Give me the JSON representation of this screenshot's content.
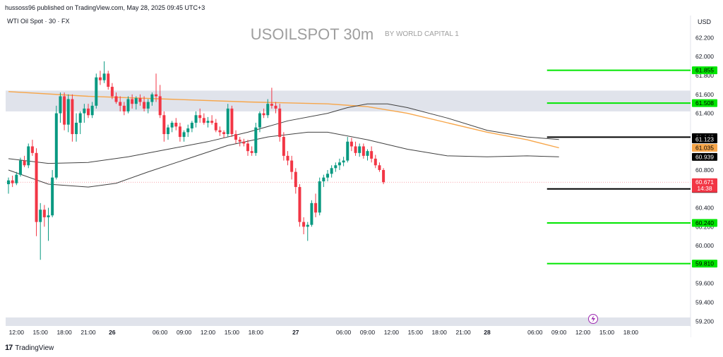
{
  "header": {
    "published_line": "hussoss96 published on TradingView.com, May 28, 2025 09:45 UTC+3"
  },
  "footer": {
    "brand": "TradingView",
    "logo_text": "17"
  },
  "colors": {
    "up": "#089981",
    "down": "#f23645",
    "support_resistance": "#00e600",
    "band_zone": "#e0e3eb",
    "ema": "#f7a64a",
    "envelope": "#404040",
    "axis_text": "#131722",
    "title_gray": "#9e9e9e"
  },
  "chart_data": {
    "type": "candlestick",
    "symbol_line": "WTI Oil Spot · 30 · FX",
    "title": "USOILSPOT 30m",
    "subtitle": "BY WORLD CAPITAL 1",
    "currency": "USD",
    "ylim": [
      59.15,
      62.3
    ],
    "y_ticks": [
      {
        "value": 62.2,
        "label": "62.200"
      },
      {
        "value": 62.0,
        "label": "62.000"
      },
      {
        "value": 61.8,
        "label": "61.800"
      },
      {
        "value": 61.6,
        "label": "61.600"
      },
      {
        "value": 61.4,
        "label": "61.400"
      },
      {
        "value": 60.8,
        "label": "60.800"
      },
      {
        "value": 60.4,
        "label": "60.400"
      },
      {
        "value": 60.2,
        "label": "60.200"
      },
      {
        "value": 60.0,
        "label": "60.000"
      },
      {
        "value": 59.6,
        "label": "59.600"
      },
      {
        "value": 59.4,
        "label": "59.400"
      },
      {
        "value": 59.2,
        "label": "59.200"
      }
    ],
    "x_ticks": [
      {
        "bar": 2,
        "label": "12:00",
        "bold": false
      },
      {
        "bar": 8,
        "label": "15:00",
        "bold": false
      },
      {
        "bar": 14,
        "label": "18:00",
        "bold": false
      },
      {
        "bar": 20,
        "label": "21:00",
        "bold": false
      },
      {
        "bar": 26,
        "label": "26",
        "bold": true
      },
      {
        "bar": 38,
        "label": "06:00",
        "bold": false
      },
      {
        "bar": 44,
        "label": "09:00",
        "bold": false
      },
      {
        "bar": 50,
        "label": "12:00",
        "bold": false
      },
      {
        "bar": 56,
        "label": "15:00",
        "bold": false
      },
      {
        "bar": 62,
        "label": "18:00",
        "bold": false
      },
      {
        "bar": 72,
        "label": "27",
        "bold": true
      },
      {
        "bar": 84,
        "label": "06:00",
        "bold": false
      },
      {
        "bar": 90,
        "label": "09:00",
        "bold": false
      },
      {
        "bar": 96,
        "label": "12:00",
        "bold": false
      },
      {
        "bar": 102,
        "label": "15:00",
        "bold": false
      },
      {
        "bar": 108,
        "label": "18:00",
        "bold": false
      },
      {
        "bar": 114,
        "label": "21:00",
        "bold": false
      },
      {
        "bar": 120,
        "label": "28",
        "bold": true
      },
      {
        "bar": 132,
        "label": "06:00",
        "bold": false
      },
      {
        "bar": 138,
        "label": "09:00",
        "bold": false
      },
      {
        "bar": 144,
        "label": "12:00",
        "bold": false
      },
      {
        "bar": 150,
        "label": "15:00",
        "bold": false
      },
      {
        "bar": 156,
        "label": "18:00",
        "bold": false
      }
    ],
    "zones": [
      {
        "from": 61.42,
        "to": 61.64
      },
      {
        "from": 59.15,
        "to": 59.24
      }
    ],
    "hlines": [
      {
        "value": 61.855,
        "label": "61.855",
        "color": "#00e600",
        "from_bar": 135,
        "style": "green"
      },
      {
        "value": 61.508,
        "label": "61.508",
        "color": "#00e600",
        "from_bar": 135,
        "style": "green"
      },
      {
        "value": 61.148,
        "label": "61.148",
        "color": "#000000",
        "from_bar": 135,
        "style": "black"
      },
      {
        "value": 60.6,
        "label": "60.600",
        "color": "#000000",
        "from_bar": 135,
        "style": "black"
      },
      {
        "value": 60.24,
        "label": "60.240",
        "color": "#00e600",
        "from_bar": 135,
        "style": "green"
      },
      {
        "value": 59.81,
        "label": "59.810",
        "color": "#00e600",
        "from_bar": 135,
        "style": "green"
      }
    ],
    "price_labels": [
      {
        "value": 61.123,
        "label": "61.123",
        "bg": "#000000",
        "fg": "#ffffff"
      },
      {
        "value": 61.035,
        "label": "61.035",
        "bg": "#f7a64a",
        "fg": "#000000"
      },
      {
        "value": 60.939,
        "label": "60.939",
        "bg": "#000000",
        "fg": "#ffffff"
      },
      {
        "value": 60.671,
        "label": "60.671",
        "bg": "#f23645",
        "fg": "#ffffff",
        "extra": "14:38"
      }
    ],
    "last_price": 60.671,
    "series": [
      {
        "kind": "ema",
        "values": [
          [
            0,
            61.63
          ],
          [
            20,
            61.58
          ],
          [
            40,
            61.55
          ],
          [
            60,
            61.52
          ],
          [
            80,
            61.5
          ],
          [
            90,
            61.47
          ],
          [
            100,
            61.4
          ],
          [
            110,
            61.3
          ],
          [
            120,
            61.2
          ],
          [
            130,
            61.12
          ],
          [
            138,
            61.035
          ]
        ]
      },
      {
        "kind": "upper_band",
        "values": [
          [
            0,
            60.92
          ],
          [
            10,
            60.87
          ],
          [
            20,
            60.88
          ],
          [
            30,
            60.94
          ],
          [
            40,
            61.02
          ],
          [
            50,
            61.1
          ],
          [
            60,
            61.2
          ],
          [
            70,
            61.32
          ],
          [
            80,
            61.4
          ],
          [
            85,
            61.46
          ],
          [
            90,
            61.5
          ],
          [
            95,
            61.5
          ],
          [
            100,
            61.46
          ],
          [
            110,
            61.35
          ],
          [
            120,
            61.22
          ],
          [
            130,
            61.15
          ],
          [
            138,
            61.123
          ]
        ]
      },
      {
        "kind": "lower_band",
        "values": [
          [
            0,
            60.8
          ],
          [
            10,
            60.65
          ],
          [
            20,
            60.62
          ],
          [
            27,
            60.66
          ],
          [
            35,
            60.78
          ],
          [
            45,
            60.92
          ],
          [
            55,
            61.06
          ],
          [
            65,
            61.15
          ],
          [
            75,
            61.2
          ],
          [
            80,
            61.2
          ],
          [
            90,
            61.12
          ],
          [
            100,
            61.02
          ],
          [
            110,
            60.95
          ],
          [
            120,
            60.94
          ],
          [
            130,
            60.95
          ],
          [
            138,
            60.939
          ]
        ]
      }
    ],
    "candles": [
      [
        60.65,
        60.72,
        60.55,
        60.69
      ],
      [
        60.69,
        60.74,
        60.62,
        60.66
      ],
      [
        60.66,
        60.78,
        60.64,
        60.75
      ],
      [
        60.75,
        60.93,
        60.73,
        60.9
      ],
      [
        60.9,
        60.95,
        60.83,
        60.85
      ],
      [
        60.85,
        61.08,
        60.82,
        61.05
      ],
      [
        61.05,
        61.12,
        60.95,
        60.98
      ],
      [
        60.98,
        61.03,
        60.1,
        60.25
      ],
      [
        60.25,
        60.45,
        59.85,
        60.38
      ],
      [
        60.38,
        60.43,
        60.2,
        60.3
      ],
      [
        60.3,
        60.4,
        60.05,
        60.32
      ],
      [
        60.32,
        60.8,
        60.3,
        60.72
      ],
      [
        60.72,
        61.48,
        60.7,
        61.4
      ],
      [
        61.4,
        61.62,
        61.3,
        61.58
      ],
      [
        61.58,
        61.62,
        61.22,
        61.28
      ],
      [
        61.28,
        61.6,
        61.2,
        61.55
      ],
      [
        61.55,
        61.6,
        61.1,
        61.18
      ],
      [
        61.18,
        61.4,
        61.1,
        61.3
      ],
      [
        61.3,
        61.42,
        61.18,
        61.4
      ],
      [
        61.4,
        61.5,
        61.3,
        61.45
      ],
      [
        61.45,
        61.5,
        61.35,
        61.38
      ],
      [
        61.38,
        61.52,
        61.35,
        61.48
      ],
      [
        61.48,
        61.82,
        61.45,
        61.78
      ],
      [
        61.78,
        61.85,
        61.7,
        61.75
      ],
      [
        61.75,
        61.95,
        61.72,
        61.82
      ],
      [
        61.82,
        61.85,
        61.65,
        61.68
      ],
      [
        61.68,
        61.72,
        61.55,
        61.58
      ],
      [
        61.58,
        61.62,
        61.5,
        61.52
      ],
      [
        61.52,
        61.58,
        61.42,
        61.48
      ],
      [
        61.48,
        61.52,
        61.38,
        61.42
      ],
      [
        61.42,
        61.58,
        61.4,
        61.55
      ],
      [
        61.55,
        61.6,
        61.45,
        61.5
      ],
      [
        61.5,
        61.58,
        61.44,
        61.56
      ],
      [
        61.56,
        61.6,
        61.48,
        61.52
      ],
      [
        61.52,
        61.58,
        61.42,
        61.45
      ],
      [
        61.45,
        61.55,
        61.4,
        61.52
      ],
      [
        61.52,
        61.62,
        61.48,
        61.6
      ],
      [
        61.6,
        61.82,
        61.52,
        61.58
      ],
      [
        61.58,
        61.7,
        61.35,
        61.38
      ],
      [
        61.38,
        61.42,
        61.1,
        61.18
      ],
      [
        61.18,
        61.28,
        61.12,
        61.25
      ],
      [
        61.25,
        61.32,
        61.2,
        61.3
      ],
      [
        61.3,
        61.35,
        61.22,
        61.26
      ],
      [
        61.26,
        61.3,
        61.1,
        61.15
      ],
      [
        61.15,
        61.22,
        61.1,
        61.2
      ],
      [
        61.2,
        61.28,
        61.15,
        61.24
      ],
      [
        61.24,
        61.32,
        61.2,
        61.3
      ],
      [
        61.3,
        61.42,
        61.25,
        61.38
      ],
      [
        61.38,
        61.45,
        61.3,
        61.35
      ],
      [
        61.35,
        61.4,
        61.28,
        61.3
      ],
      [
        61.3,
        61.36,
        61.25,
        61.32
      ],
      [
        61.32,
        61.38,
        61.28,
        61.3
      ],
      [
        61.3,
        61.34,
        61.2,
        61.22
      ],
      [
        61.22,
        61.26,
        61.16,
        61.2
      ],
      [
        61.2,
        61.22,
        61.14,
        61.18
      ],
      [
        61.18,
        61.5,
        61.15,
        61.45
      ],
      [
        61.45,
        61.48,
        61.15,
        61.18
      ],
      [
        61.18,
        61.22,
        61.08,
        61.12
      ],
      [
        61.12,
        61.15,
        61.05,
        61.1
      ],
      [
        61.1,
        61.13,
        61.05,
        61.08
      ],
      [
        61.08,
        61.12,
        60.95,
        61.0
      ],
      [
        61.0,
        61.05,
        60.95,
        60.98
      ],
      [
        60.98,
        61.3,
        60.95,
        61.25
      ],
      [
        61.25,
        61.42,
        61.2,
        61.4
      ],
      [
        61.4,
        61.45,
        61.35,
        61.38
      ],
      [
        61.38,
        61.55,
        61.35,
        61.5
      ],
      [
        61.5,
        61.67,
        61.45,
        61.48
      ],
      [
        61.48,
        61.52,
        61.4,
        61.45
      ],
      [
        61.45,
        61.5,
        61.1,
        61.15
      ],
      [
        61.15,
        61.2,
        60.9,
        60.95
      ],
      [
        60.95,
        61.0,
        60.85,
        60.9
      ],
      [
        60.9,
        60.95,
        60.7,
        60.78
      ],
      [
        60.78,
        60.82,
        60.55,
        60.62
      ],
      [
        60.62,
        60.65,
        60.2,
        60.25
      ],
      [
        60.25,
        60.3,
        60.12,
        60.2
      ],
      [
        60.2,
        60.25,
        60.05,
        60.22
      ],
      [
        60.22,
        60.48,
        60.2,
        60.45
      ],
      [
        60.45,
        60.55,
        60.3,
        60.35
      ],
      [
        60.35,
        60.72,
        60.32,
        60.68
      ],
      [
        60.68,
        60.75,
        60.62,
        60.72
      ],
      [
        60.72,
        60.8,
        60.68,
        60.76
      ],
      [
        60.76,
        60.85,
        60.72,
        60.82
      ],
      [
        60.82,
        60.88,
        60.78,
        60.85
      ],
      [
        60.85,
        60.92,
        60.8,
        60.88
      ],
      [
        60.88,
        60.94,
        60.84,
        60.9
      ],
      [
        60.9,
        61.15,
        60.88,
        61.1
      ],
      [
        61.1,
        61.14,
        61.0,
        61.05
      ],
      [
        61.05,
        61.1,
        60.95,
        60.98
      ],
      [
        60.98,
        61.08,
        60.94,
        61.05
      ],
      [
        61.05,
        61.08,
        60.92,
        60.95
      ],
      [
        60.95,
        61.02,
        60.9,
        61.0
      ],
      [
        61.0,
        61.05,
        60.88,
        60.92
      ],
      [
        60.92,
        60.96,
        60.82,
        60.85
      ],
      [
        60.85,
        60.88,
        60.78,
        60.8
      ],
      [
        60.8,
        60.82,
        60.65,
        60.671
      ]
    ]
  }
}
